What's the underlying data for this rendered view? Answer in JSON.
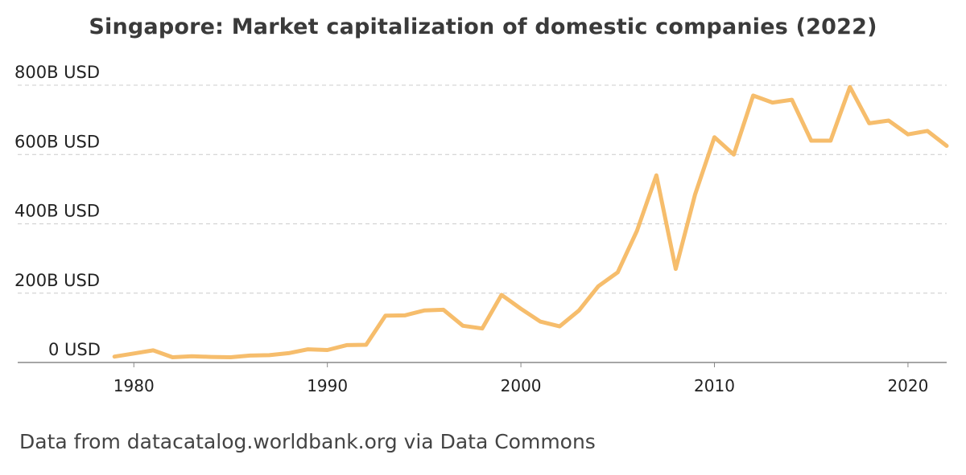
{
  "colors": {
    "line": "#f6bd6c",
    "grid": "#cccccc",
    "axis": "#888888",
    "text": "#222222"
  },
  "footer": {
    "source": "Data from datacatalog.worldbank.org via Data Commons"
  },
  "chart_data": {
    "type": "line",
    "title": "Singapore: Market capitalization of domestic companies (2022)",
    "xlabel": "",
    "ylabel": "",
    "xlim": [
      1974,
      2022
    ],
    "ylim": [
      0,
      800
    ],
    "y_unit": "billion USD",
    "grid": "horizontal-dashed",
    "legend": "none",
    "x_ticks": [
      1980,
      1990,
      2000,
      2010,
      2020
    ],
    "x_tick_labels": [
      "1980",
      "1990",
      "2000",
      "2010",
      "2020"
    ],
    "y_ticks": [
      0,
      200,
      400,
      600,
      800
    ],
    "y_tick_labels": [
      "0 USD",
      "200B USD",
      "400B USD",
      "600B USD",
      "800B USD"
    ],
    "series": [
      {
        "x": [
          1979,
          1980,
          1981,
          1982,
          1983,
          1984,
          1985,
          1986,
          1987,
          1988,
          1989,
          1990,
          1991,
          1992,
          1993,
          1994,
          1995,
          1996,
          1997,
          1998,
          1999,
          2000,
          2001,
          2002,
          2003,
          2004,
          2005,
          2006,
          2007,
          2008,
          2009,
          2010,
          2011,
          2012,
          2013,
          2014,
          2015,
          2016,
          2017,
          2018,
          2019,
          2020,
          2021,
          2022
        ],
        "values": [
          17,
          26,
          35,
          15,
          18,
          16,
          15,
          20,
          21,
          27,
          38,
          36,
          50,
          51,
          135,
          136,
          150,
          152,
          106,
          98,
          195,
          155,
          118,
          104,
          150,
          220,
          260,
          380,
          540,
          270,
          485,
          650,
          600,
          770,
          750,
          758,
          640,
          640,
          795,
          690,
          698,
          658,
          668,
          625
        ]
      }
    ]
  }
}
